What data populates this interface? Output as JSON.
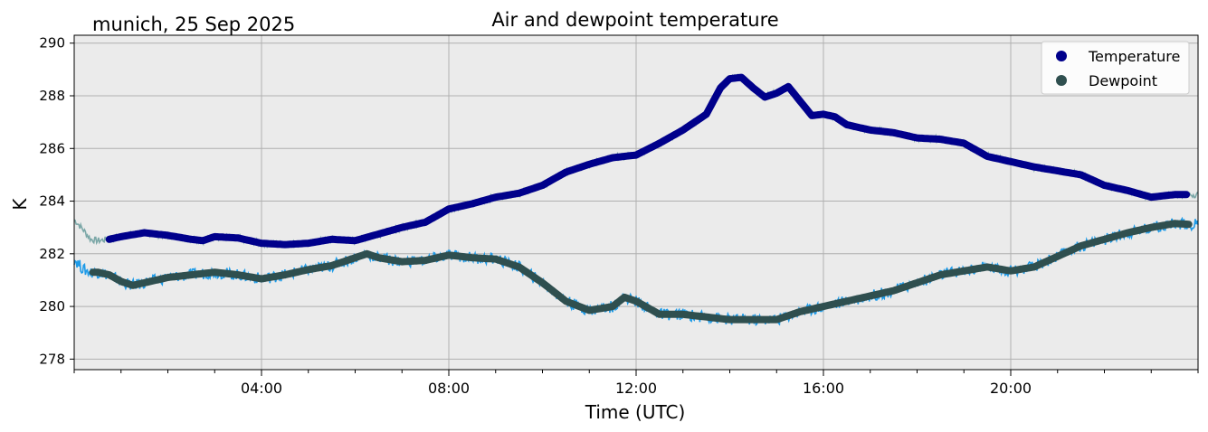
{
  "chart_data": {
    "type": "line",
    "title": "Air and dewpoint temperature",
    "subtitle": "munich, 25 Sep 2025",
    "xlabel": "Time (UTC)",
    "ylabel": "K",
    "xlim": [
      0.0,
      24.0
    ],
    "ylim": [
      277.6,
      290.3
    ],
    "grid": true,
    "legend_position": "top-right",
    "x_ticks": [
      {
        "value": 4,
        "label": "04:00"
      },
      {
        "value": 8,
        "label": "08:00"
      },
      {
        "value": 12,
        "label": "12:00"
      },
      {
        "value": 16,
        "label": "16:00"
      },
      {
        "value": 20,
        "label": "20:00"
      }
    ],
    "y_ticks": [
      {
        "value": 278,
        "label": "278"
      },
      {
        "value": 280,
        "label": "280"
      },
      {
        "value": 282,
        "label": "282"
      },
      {
        "value": 284,
        "label": "284"
      },
      {
        "value": 286,
        "label": "286"
      },
      {
        "value": 288,
        "label": "288"
      },
      {
        "value": 290,
        "label": "290"
      }
    ],
    "series": [
      {
        "name": "Temperature",
        "color": "#00008b",
        "raw_color": "#7ba7a7",
        "x": [
          0.0,
          0.2,
          0.35,
          0.5,
          0.75,
          1.0,
          1.5,
          2.0,
          2.5,
          2.75,
          3.0,
          3.5,
          4.0,
          4.5,
          5.0,
          5.5,
          6.0,
          6.5,
          7.0,
          7.5,
          8.0,
          8.5,
          9.0,
          9.5,
          10.0,
          10.5,
          11.0,
          11.5,
          12.0,
          12.5,
          13.0,
          13.5,
          13.8,
          14.0,
          14.25,
          14.5,
          14.75,
          15.0,
          15.25,
          15.5,
          15.75,
          16.0,
          16.25,
          16.5,
          17.0,
          17.5,
          18.0,
          18.5,
          19.0,
          19.5,
          20.0,
          20.5,
          21.0,
          21.5,
          22.0,
          22.5,
          23.0,
          23.5,
          24.0
        ],
        "values": [
          283.3,
          282.9,
          282.55,
          282.5,
          282.55,
          282.65,
          282.8,
          282.7,
          282.55,
          282.5,
          282.65,
          282.6,
          282.4,
          282.35,
          282.4,
          282.55,
          282.5,
          282.75,
          283.0,
          283.2,
          283.7,
          283.9,
          284.15,
          284.3,
          284.6,
          285.1,
          285.4,
          285.65,
          285.75,
          286.2,
          286.7,
          287.3,
          288.3,
          288.65,
          288.7,
          288.3,
          287.95,
          288.1,
          288.35,
          287.8,
          287.25,
          287.3,
          287.2,
          286.9,
          286.7,
          286.6,
          286.4,
          286.35,
          286.2,
          285.7,
          285.5,
          285.3,
          285.15,
          285.0,
          284.6,
          284.4,
          284.15,
          284.25,
          284.25
        ]
      },
      {
        "name": "Dewpoint",
        "color": "#2f4f4f",
        "raw_color": "#1e9be8",
        "x": [
          0.0,
          0.2,
          0.35,
          0.5,
          0.75,
          1.0,
          1.25,
          1.5,
          2.0,
          2.5,
          3.0,
          3.5,
          4.0,
          4.5,
          5.0,
          5.5,
          6.0,
          6.25,
          6.5,
          7.0,
          7.5,
          8.0,
          8.5,
          9.0,
          9.5,
          10.0,
          10.5,
          11.0,
          11.5,
          11.75,
          12.0,
          12.5,
          13.0,
          13.5,
          14.0,
          14.5,
          15.0,
          15.5,
          16.0,
          16.5,
          17.0,
          17.5,
          18.0,
          18.5,
          19.0,
          19.5,
          20.0,
          20.5,
          21.0,
          21.5,
          22.0,
          22.5,
          23.0,
          23.5,
          24.0
        ],
        "values": [
          281.8,
          281.4,
          281.3,
          281.3,
          281.2,
          280.95,
          280.8,
          280.9,
          281.1,
          281.2,
          281.3,
          281.2,
          281.05,
          281.2,
          281.4,
          281.55,
          281.85,
          282.0,
          281.85,
          281.7,
          281.75,
          281.95,
          281.85,
          281.8,
          281.5,
          280.9,
          280.2,
          279.85,
          280.0,
          280.35,
          280.2,
          279.7,
          279.7,
          279.6,
          279.5,
          279.5,
          279.5,
          279.8,
          280.0,
          280.2,
          280.4,
          280.6,
          280.9,
          281.2,
          281.35,
          281.5,
          281.35,
          281.5,
          281.9,
          282.3,
          282.55,
          282.8,
          283.0,
          283.15,
          283.1
        ]
      }
    ]
  }
}
